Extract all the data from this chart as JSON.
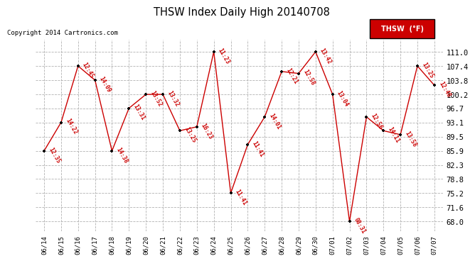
{
  "title": "THSW Index Daily High 20140708",
  "copyright": "Copyright 2014 Cartronics.com",
  "legend_label": "THSW  (°F)",
  "x_labels": [
    "06/14",
    "06/15",
    "06/16",
    "06/17",
    "06/18",
    "06/19",
    "06/20",
    "06/21",
    "06/22",
    "06/23",
    "06/24",
    "06/25",
    "06/26",
    "06/27",
    "06/28",
    "06/29",
    "06/30",
    "07/01",
    "07/02",
    "07/03",
    "07/04",
    "07/05",
    "07/06",
    "07/07"
  ],
  "y_values": [
    85.9,
    93.1,
    107.4,
    103.8,
    85.9,
    96.7,
    100.2,
    100.2,
    91.0,
    92.0,
    111.0,
    75.2,
    87.5,
    94.5,
    106.0,
    105.5,
    111.0,
    100.2,
    68.0,
    94.5,
    91.0,
    90.0,
    107.4,
    102.5
  ],
  "time_labels": [
    "12:35",
    "14:22",
    "12:45",
    "14:09",
    "14:38",
    "13:31",
    "13:52",
    "13:32",
    "13:25",
    "16:23",
    "11:23",
    "11:41",
    "11:41",
    "14:01",
    "12:21",
    "12:58",
    "13:42",
    "13:04",
    "08:31",
    "12:56",
    "14:11",
    "13:58",
    "13:25",
    "12:48"
  ],
  "y_ticks": [
    68.0,
    71.6,
    75.2,
    78.8,
    82.3,
    85.9,
    89.5,
    93.1,
    96.7,
    100.2,
    103.8,
    107.4,
    111.0
  ],
  "line_color": "#CC0000",
  "marker_color": "#000000",
  "grid_color": "#AAAAAA",
  "bg_color": "#FFFFFF",
  "label_color": "#CC0000",
  "title_color": "#000000",
  "copyright_color": "#000000",
  "legend_bg": "#CC0000",
  "legend_text_color": "#FFFFFF"
}
